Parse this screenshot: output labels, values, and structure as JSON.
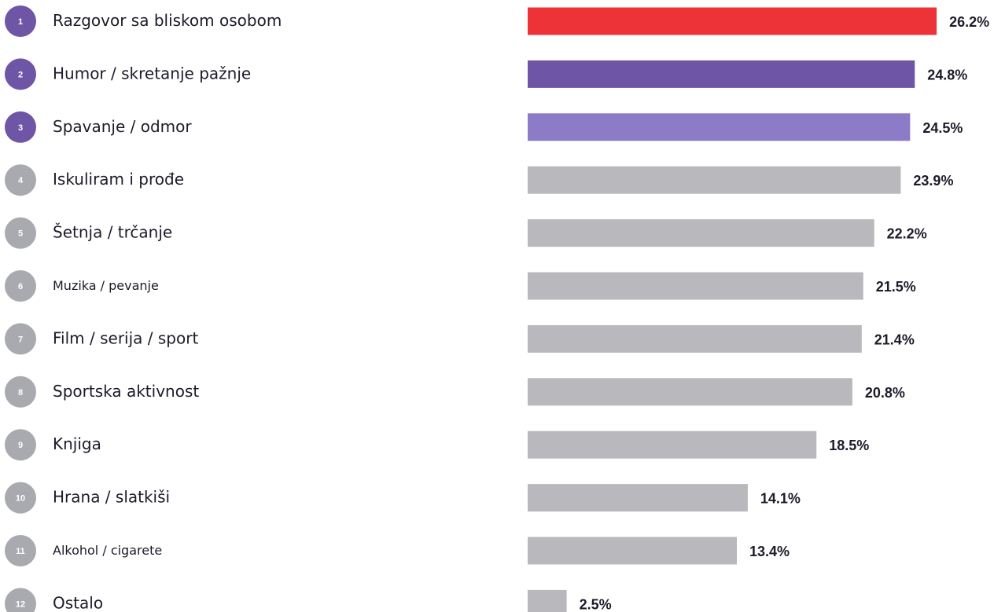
{
  "chart_data": {
    "type": "bar",
    "orientation": "horizontal",
    "title": "",
    "xlabel": "",
    "ylabel": "",
    "ranks": [
      "1",
      "2",
      "3",
      "4",
      "5",
      "6",
      "7",
      "8",
      "9",
      "10",
      "11",
      "12"
    ],
    "categories": [
      "Razgovor sa bliskom osobom",
      "Humor / skretanje pažnje",
      "Spavanje / odmor",
      "Iskuliram i prođe",
      "Šetnja / trčanje",
      "Muzika / pevanje",
      "Film / serija / sport",
      "Sportska aktivnost",
      "Knjiga",
      "Hrana / slatkiši",
      "Alkohol / cigarete",
      "Ostalo"
    ],
    "values": [
      26.2,
      24.8,
      24.5,
      23.9,
      22.2,
      21.5,
      21.4,
      20.8,
      18.5,
      14.1,
      13.4,
      2.5
    ],
    "value_labels": [
      "26.2%",
      "24.8%",
      "24.5%",
      "23.9%",
      "22.2%",
      "21.5%",
      "21.4%",
      "20.8%",
      "18.5%",
      "14.1%",
      "13.4%",
      "2.5%"
    ],
    "unit": "%",
    "grid": false,
    "legend": "none",
    "colors": {
      "bars": [
        "#ee3338",
        "#6e55a6",
        "#8c7bc6",
        "#b8b8bd",
        "#b8b8bd",
        "#b8b8bd",
        "#b8b8bd",
        "#b8b8bd",
        "#b8b8bd",
        "#b8b8bd",
        "#b8b8bd",
        "#b8b8bd"
      ],
      "rank_badges": [
        "#6e55a6",
        "#6e55a6",
        "#6e55a6",
        "#a9a9b0",
        "#a9a9b0",
        "#a9a9b0",
        "#a9a9b0",
        "#a9a9b0",
        "#a9a9b0",
        "#a9a9b0",
        "#a9a9b0",
        "#a9a9b0"
      ],
      "text": "#1b1b2a"
    }
  }
}
